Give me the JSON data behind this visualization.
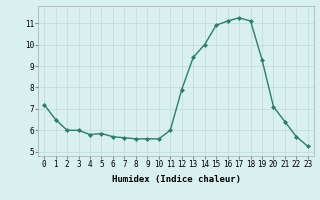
{
  "x": [
    0,
    1,
    2,
    3,
    4,
    5,
    6,
    7,
    8,
    9,
    10,
    11,
    12,
    13,
    14,
    15,
    16,
    17,
    18,
    19,
    20,
    21,
    22,
    23
  ],
  "y": [
    7.2,
    6.5,
    6.0,
    6.0,
    5.8,
    5.85,
    5.7,
    5.65,
    5.6,
    5.6,
    5.6,
    6.0,
    7.9,
    9.4,
    10.0,
    10.9,
    11.1,
    11.25,
    11.1,
    9.3,
    7.1,
    6.4,
    5.7,
    5.25
  ],
  "line_color": "#2d7c6e",
  "marker": "D",
  "marker_size": 2.0,
  "line_width": 1.0,
  "bg_color": "#d8f0ef",
  "grid_color": "#c0d8d8",
  "xlabel": "Humidex (Indice chaleur)",
  "xlim": [
    -0.5,
    23.5
  ],
  "ylim": [
    4.8,
    11.8
  ],
  "yticks": [
    5,
    6,
    7,
    8,
    9,
    10,
    11
  ],
  "xticks": [
    0,
    1,
    2,
    3,
    4,
    5,
    6,
    7,
    8,
    9,
    10,
    11,
    12,
    13,
    14,
    15,
    16,
    17,
    18,
    19,
    20,
    21,
    22,
    23
  ],
  "xlabel_fontsize": 6.5,
  "tick_fontsize": 5.5
}
